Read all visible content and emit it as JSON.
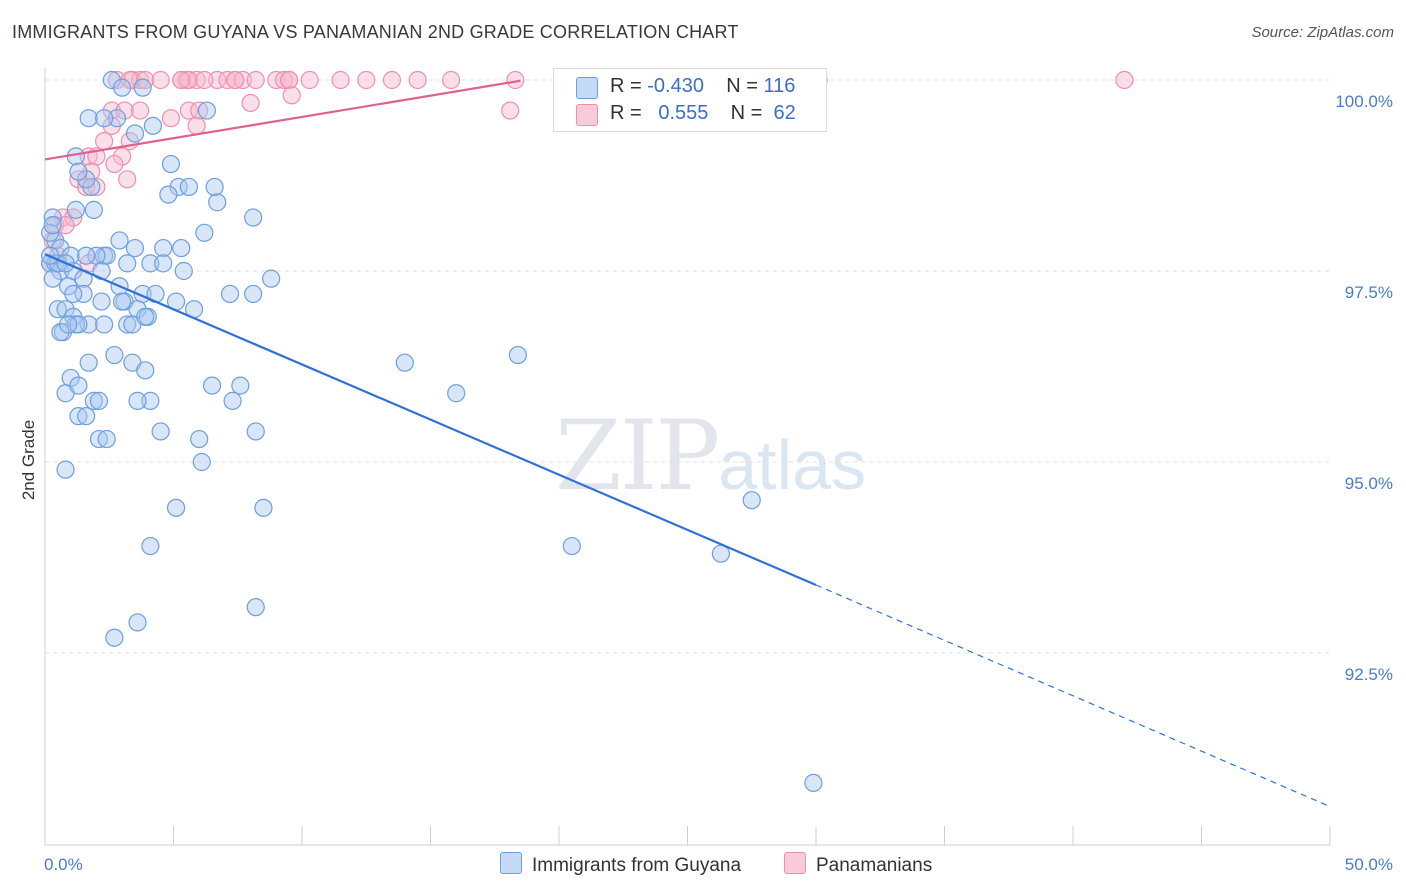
{
  "header": {
    "title": "IMMIGRANTS FROM GUYANA VS PANAMANIAN 2ND GRADE CORRELATION CHART",
    "source": "Source: ZipAtlas.com"
  },
  "legend": {
    "rows": [
      {
        "r_label": "R =",
        "r_value": "-0.430",
        "n_label": "N =",
        "n_value": "116"
      },
      {
        "r_label": "R =",
        "r_value": "0.555",
        "n_label": "N =",
        "n_value": "62"
      }
    ]
  },
  "bottom_legend": {
    "guyana": "Immigrants from Guyana",
    "panama": "Panamanians"
  },
  "watermark": {
    "zip": "ZIP",
    "atlas": "atlas"
  },
  "colors": {
    "guyana_fill": "#a8c8f0",
    "guyana_stroke": "#6d9fe0",
    "guyana_line": "#2f72d6",
    "panama_fill": "#f6b8cc",
    "panama_stroke": "#ee8fb0",
    "panama_line": "#e0608e"
  },
  "chart_data": {
    "type": "scatter",
    "title": "IMMIGRANTS FROM GUYANA VS PANAMANIAN 2ND GRADE CORRELATION CHART",
    "ylabel": "2nd Grade",
    "xlim": [
      0,
      50
    ],
    "ylim": [
      90.0,
      100.5
    ],
    "x_ticks": [
      0,
      5,
      10,
      15,
      20,
      25,
      30,
      35,
      40,
      45,
      50
    ],
    "x_tick_labels": [
      "0.0%",
      "",
      "",
      "",
      "",
      "",
      "",
      "",
      "",
      "",
      "50.0%"
    ],
    "y_ticks": [
      92.5,
      95.0,
      97.5,
      100.0
    ],
    "y_tick_labels": [
      "92.5%",
      "95.0%",
      "97.5%",
      "100.0%"
    ],
    "grid": true,
    "series": [
      {
        "name": "Immigrants from Guyana",
        "x": [
          2.6,
          3.0,
          1.2,
          1.7,
          2.8,
          3.8,
          2.3,
          4.2,
          4.9,
          3.5,
          5.2,
          5.6,
          6.7,
          6.6,
          8.1,
          1.8,
          0.3,
          1.2,
          0.4,
          2.9,
          3.5,
          4.6,
          5.3,
          0.6,
          1.0,
          2.3,
          2.4,
          3.2,
          4.1,
          4.6,
          5.4,
          6.2,
          0.2,
          0.4,
          0.6,
          1.1,
          1.5,
          2.9,
          3.8,
          4.3,
          5.1,
          0.3,
          0.9,
          1.5,
          2.2,
          3.1,
          3.6,
          4.0,
          7.2,
          8.1,
          8.8,
          0.5,
          0.8,
          1.1,
          1.7,
          2.3,
          3.2,
          3.4,
          3.9,
          5.8,
          0.7,
          1.2,
          1.7,
          2.7,
          3.4,
          1.0,
          3.9,
          14.0,
          18.4,
          0.8,
          1.3,
          1.9,
          2.1,
          4.1,
          6.5,
          7.6,
          1.3,
          1.6,
          3.6,
          4.5,
          6.0,
          7.3,
          8.2,
          16.0,
          2.1,
          2.4,
          6.1,
          0.8,
          5.1,
          8.5,
          26.3,
          27.5,
          4.1,
          20.5,
          8.2,
          3.6,
          2.7,
          29.9,
          0.2,
          1.6,
          1.9,
          0.3,
          0.5,
          1.3,
          2.0,
          1.6,
          3.0,
          0.8,
          0.2,
          1.1,
          1.3,
          0.6,
          0.9,
          4.8,
          6.3,
          2.2
        ],
        "y": [
          100.0,
          99.9,
          99.0,
          99.5,
          99.5,
          99.9,
          99.5,
          99.4,
          98.9,
          99.3,
          98.6,
          98.6,
          98.4,
          98.6,
          98.2,
          98.6,
          98.2,
          98.3,
          97.9,
          97.9,
          97.8,
          97.8,
          97.8,
          97.8,
          97.7,
          97.7,
          97.7,
          97.6,
          97.6,
          97.6,
          97.5,
          98.0,
          97.6,
          97.6,
          97.5,
          97.5,
          97.4,
          97.3,
          97.2,
          97.2,
          97.1,
          97.4,
          97.3,
          97.2,
          97.1,
          97.1,
          97.0,
          96.9,
          97.2,
          97.2,
          97.4,
          97.0,
          97.0,
          96.9,
          96.8,
          96.8,
          96.8,
          96.8,
          96.9,
          97.0,
          96.7,
          96.8,
          96.3,
          96.4,
          96.3,
          96.1,
          96.2,
          96.3,
          96.4,
          95.9,
          96.0,
          95.8,
          95.8,
          95.8,
          96.0,
          96.0,
          95.6,
          95.6,
          95.8,
          95.4,
          95.3,
          95.8,
          95.4,
          95.9,
          95.3,
          95.3,
          95.0,
          94.9,
          94.4,
          94.4,
          93.8,
          94.5,
          93.9,
          93.9,
          93.1,
          92.9,
          92.7,
          90.8,
          98.0,
          98.7,
          98.3,
          98.1,
          97.6,
          98.8,
          97.7,
          97.7,
          97.1,
          97.6,
          97.7,
          97.2,
          96.8,
          96.7,
          96.8,
          98.5,
          99.6,
          97.5
        ]
      },
      {
        "name": "Panamanians",
        "x": [
          3.4,
          3.7,
          5.3,
          5.5,
          5.9,
          6.7,
          7.1,
          7.4,
          7.7,
          8.2,
          9.0,
          9.3,
          9.5,
          10.3,
          11.5,
          12.5,
          13.5,
          14.5,
          15.8,
          18.3,
          23.1,
          30.1,
          42.0,
          5.6,
          6.2,
          9.5,
          2.8,
          3.3,
          3.9,
          4.5,
          5.3,
          7.4,
          2.6,
          3.1,
          5.6,
          6.0,
          8.0,
          2.6,
          3.7,
          5.9,
          4.9,
          9.6,
          18.1,
          2.3,
          3.3,
          1.7,
          2.0,
          3.0,
          2.7,
          1.8,
          3.2,
          1.3,
          1.6,
          2.0,
          0.7,
          1.1,
          0.4,
          0.8,
          0.3,
          0.5,
          1.7,
          0.2
        ],
        "y": [
          100.0,
          100.0,
          100.0,
          100.0,
          100.0,
          100.0,
          100.0,
          100.0,
          100.0,
          100.0,
          100.0,
          100.0,
          100.0,
          100.0,
          100.0,
          100.0,
          100.0,
          100.0,
          100.0,
          100.0,
          100.0,
          100.0,
          100.0,
          100.0,
          100.0,
          100.0,
          100.0,
          100.0,
          100.0,
          100.0,
          100.0,
          100.0,
          99.6,
          99.6,
          99.6,
          99.6,
          99.7,
          99.4,
          99.6,
          99.4,
          99.5,
          99.8,
          99.6,
          99.2,
          99.2,
          99.0,
          99.0,
          99.0,
          98.9,
          98.8,
          98.7,
          98.7,
          98.6,
          98.6,
          98.2,
          98.2,
          98.1,
          98.1,
          97.9,
          97.7,
          97.6,
          97.6
        ]
      }
    ],
    "trendlines": [
      {
        "series": "Immigrants from Guyana",
        "x": [
          0.0,
          30.0
        ],
        "y": [
          97.72,
          93.39
        ],
        "extended_x": [
          30.0,
          50.0
        ],
        "extended_y": [
          93.39,
          90.49
        ],
        "style": "solid then dashed"
      },
      {
        "series": "Panamanians",
        "x": [
          0.0,
          18.5
        ],
        "y": [
          98.96,
          99.99
        ],
        "style": "solid"
      }
    ]
  }
}
